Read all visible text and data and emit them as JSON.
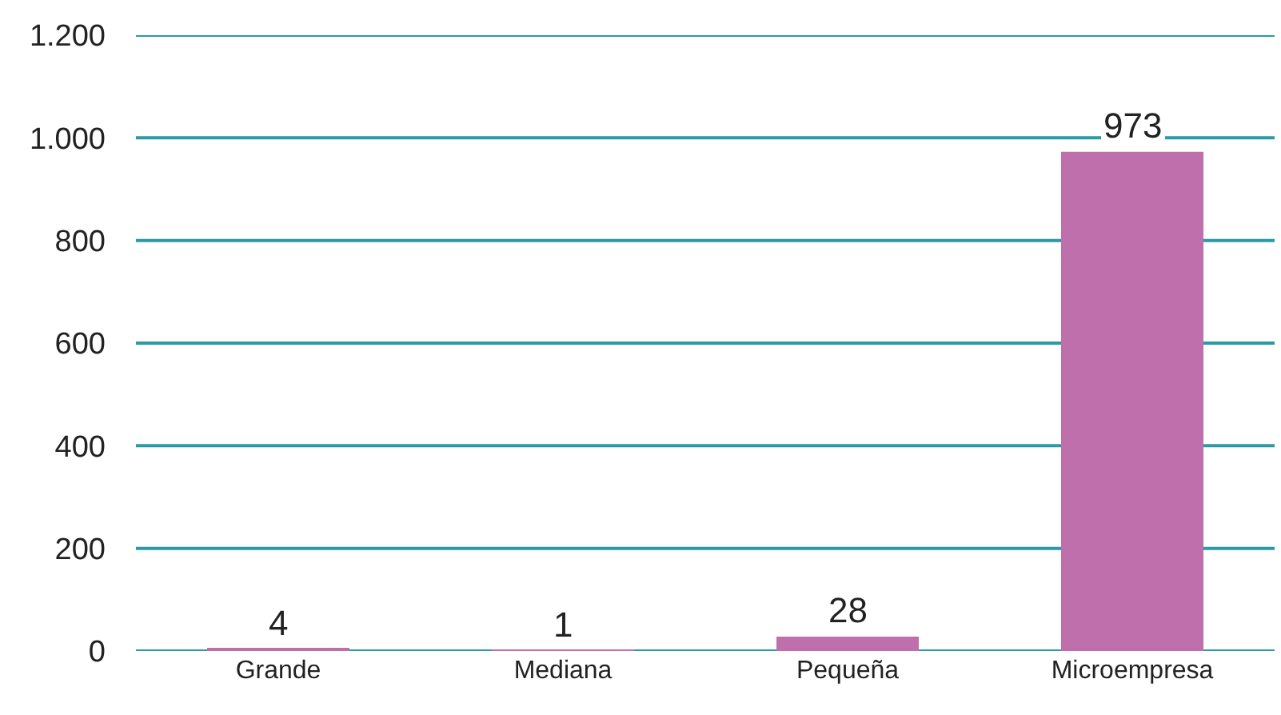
{
  "chart_data": {
    "type": "bar",
    "categories": [
      "Grande",
      "Mediana",
      "Pequeña",
      "Microempresa"
    ],
    "values": [
      4,
      1,
      28,
      973
    ],
    "color": "#bf6fab",
    "data_labels": true,
    "ylim": [
      0,
      1200
    ],
    "yticks": [
      0,
      200,
      400,
      600,
      800,
      {
        "value": 1000,
        "label": "1.000"
      },
      {
        "value": 1200,
        "label": "1.200"
      }
    ],
    "grid": "y"
  }
}
